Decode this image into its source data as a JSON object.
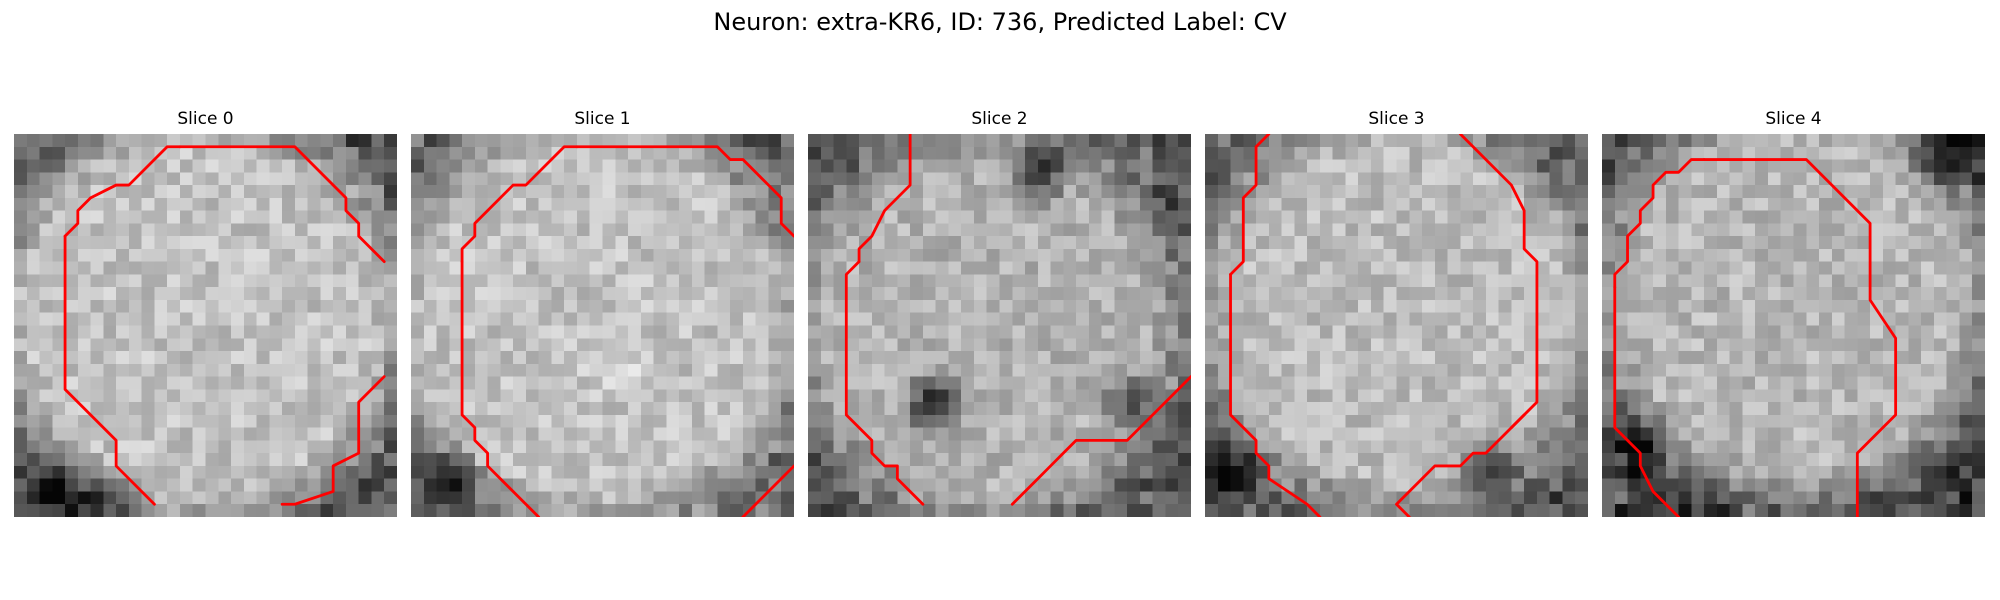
{
  "figure": {
    "title": "Neuron: extra-KR6, ID: 736, Predicted Label: CV"
  },
  "panels": [
    {
      "title": "Slice 0",
      "image": {
        "grid": 30,
        "base": 0.76,
        "ring_center": [
          14.5,
          14.5
        ],
        "ring_radius": 17.5,
        "ring_dark": 0.45,
        "dark_blobs": [
          [
            4,
            28,
            4,
            0.35
          ],
          [
            8,
            29,
            3,
            0.25
          ]
        ]
      },
      "contour": [
        [
          [
            13,
            1
          ],
          [
            22,
            1
          ],
          [
            26,
            5
          ],
          [
            26,
            6
          ],
          [
            27,
            7
          ],
          [
            27,
            8
          ],
          [
            29,
            10
          ]
        ],
        [
          [
            29,
            19
          ],
          [
            27,
            21
          ],
          [
            27,
            25
          ],
          [
            25,
            26
          ],
          [
            25,
            28
          ],
          [
            22,
            29
          ],
          [
            21,
            29
          ]
        ],
        [
          [
            4,
            8
          ],
          [
            5,
            7
          ],
          [
            5,
            6
          ],
          [
            6,
            5
          ],
          [
            8,
            4
          ],
          [
            9,
            4
          ],
          [
            11,
            2
          ],
          [
            12,
            1
          ],
          [
            13,
            1
          ]
        ],
        [
          [
            4,
            8
          ],
          [
            4,
            20
          ],
          [
            8,
            24
          ],
          [
            8,
            26
          ],
          [
            10,
            28
          ],
          [
            11,
            29
          ]
        ]
      ],
      "contour_color": "#ff0000"
    },
    {
      "title": "Slice 1",
      "image": {
        "grid": 30,
        "base": 0.76,
        "ring_center": [
          14.5,
          14.5
        ],
        "ring_radius": 17.5,
        "ring_dark": 0.4,
        "dark_blobs": [
          [
            3,
            27,
            3,
            0.35
          ],
          [
            16,
            18,
            3,
            -0.12
          ]
        ]
      },
      "contour": [
        [
          [
            13,
            1
          ],
          [
            24,
            1
          ],
          [
            25,
            2
          ],
          [
            26,
            2
          ],
          [
            28,
            4
          ],
          [
            29,
            5
          ],
          [
            29,
            7
          ],
          [
            30,
            8
          ]
        ],
        [
          [
            4,
            10
          ],
          [
            4,
            9
          ],
          [
            5,
            8
          ],
          [
            5,
            7
          ],
          [
            6,
            6
          ],
          [
            8,
            4
          ],
          [
            9,
            4
          ],
          [
            11,
            2
          ],
          [
            12,
            1
          ],
          [
            13,
            1
          ]
        ],
        [
          [
            4,
            10
          ],
          [
            4,
            22
          ],
          [
            5,
            23
          ],
          [
            5,
            24
          ],
          [
            6,
            25
          ],
          [
            6,
            26
          ],
          [
            7,
            27
          ],
          [
            9,
            29
          ],
          [
            10,
            30
          ]
        ],
        [
          [
            30,
            26
          ],
          [
            29,
            27
          ],
          [
            28,
            28
          ],
          [
            27,
            29
          ],
          [
            26,
            30
          ]
        ]
      ],
      "contour_color": "#ff0000"
    },
    {
      "title": "Slice 2",
      "image": {
        "grid": 30,
        "base": 0.7,
        "ring_center": [
          14,
          15
        ],
        "ring_radius": 16.5,
        "ring_dark": 0.4,
        "dark_blobs": [
          [
            10,
            21,
            3,
            0.55
          ],
          [
            18,
            3,
            3,
            0.45
          ],
          [
            25,
            21,
            3,
            0.35
          ]
        ]
      },
      "contour": [
        [
          [
            8,
            0
          ],
          [
            8,
            4
          ],
          [
            6,
            6
          ],
          [
            5,
            8
          ],
          [
            4,
            9
          ],
          [
            4,
            10
          ]
        ],
        [
          [
            4,
            10
          ],
          [
            3,
            11
          ],
          [
            3,
            22
          ],
          [
            4,
            23
          ],
          [
            5,
            24
          ],
          [
            5,
            25
          ],
          [
            6,
            26
          ],
          [
            7,
            26
          ],
          [
            7,
            27
          ],
          [
            8,
            28
          ],
          [
            9,
            29
          ]
        ],
        [
          [
            16,
            29
          ],
          [
            18,
            27
          ],
          [
            19,
            26
          ],
          [
            20,
            25
          ],
          [
            21,
            24
          ],
          [
            25,
            24
          ],
          [
            29,
            20
          ],
          [
            30,
            19
          ]
        ]
      ],
      "contour_color": "#ff0000"
    },
    {
      "title": "Slice 3",
      "image": {
        "grid": 30,
        "base": 0.74,
        "ring_center": [
          15,
          14
        ],
        "ring_radius": 17,
        "ring_dark": 0.45,
        "dark_blobs": [
          [
            22,
            26,
            3,
            0.45
          ],
          [
            2,
            26,
            3,
            0.3
          ]
        ]
      },
      "contour": [
        [
          [
            5,
            0
          ],
          [
            4,
            1
          ],
          [
            4,
            4
          ],
          [
            3,
            5
          ],
          [
            3,
            9
          ],
          [
            3,
            10
          ],
          [
            2,
            11
          ]
        ],
        [
          [
            2,
            11
          ],
          [
            2,
            22
          ],
          [
            3,
            23
          ],
          [
            4,
            24
          ],
          [
            4,
            25
          ],
          [
            5,
            26
          ],
          [
            5,
            27
          ],
          [
            8,
            29
          ],
          [
            9,
            30
          ]
        ],
        [
          [
            20,
            0
          ],
          [
            24,
            4
          ],
          [
            25,
            6
          ],
          [
            25,
            9
          ],
          [
            26,
            10
          ],
          [
            26,
            21
          ],
          [
            25,
            22
          ],
          [
            24,
            23
          ],
          [
            22,
            25
          ],
          [
            21,
            25
          ],
          [
            20,
            26
          ],
          [
            19,
            26
          ],
          [
            18,
            26
          ],
          [
            17,
            27
          ],
          [
            16,
            28
          ],
          [
            15,
            29
          ],
          [
            16,
            30
          ]
        ],
        [
          [
            25,
            22
          ],
          [
            24,
            23
          ]
        ]
      ],
      "contour_color": "#ff0000"
    },
    {
      "title": "Slice 4",
      "image": {
        "grid": 30,
        "base": 0.72,
        "ring_center": [
          15,
          13
        ],
        "ring_radius": 17,
        "ring_dark": 0.5,
        "dark_blobs": [
          [
            3,
            24,
            3,
            0.35
          ],
          [
            27,
            2,
            3,
            0.35
          ]
        ]
      },
      "contour": [
        [
          [
            8,
            2
          ],
          [
            16,
            2
          ],
          [
            21,
            7
          ],
          [
            21,
            13
          ],
          [
            23,
            16
          ],
          [
            23,
            22
          ],
          [
            20,
            25
          ],
          [
            20,
            30
          ]
        ],
        [
          [
            8,
            2
          ],
          [
            7,
            2
          ],
          [
            6,
            3
          ],
          [
            5,
            3
          ],
          [
            4,
            4
          ],
          [
            4,
            5
          ],
          [
            3,
            6
          ],
          [
            3,
            7
          ],
          [
            2,
            8
          ],
          [
            2,
            9
          ],
          [
            2,
            10
          ],
          [
            1,
            11
          ],
          [
            1,
            12
          ]
        ],
        [
          [
            1,
            12
          ],
          [
            1,
            23
          ],
          [
            3,
            25
          ],
          [
            3,
            26
          ],
          [
            4,
            28
          ],
          [
            6,
            30
          ]
        ]
      ],
      "contour_color": "#ff0000"
    }
  ]
}
